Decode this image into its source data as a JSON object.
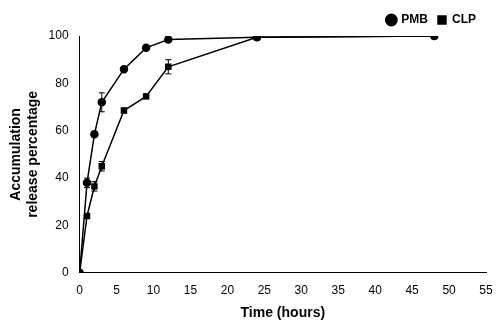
{
  "chart_data": {
    "type": "line",
    "x_label": "Time (hours)",
    "y_label": [
      "Accumulation",
      "release percentage"
    ],
    "xlim": [
      0,
      55
    ],
    "xticks": [
      0,
      5,
      10,
      15,
      20,
      25,
      30,
      35,
      40,
      45,
      50,
      55
    ],
    "ylim": [
      0,
      100
    ],
    "yticks": [
      0,
      20,
      40,
      60,
      80,
      100
    ],
    "grid": false,
    "legend": "top-right",
    "series": [
      {
        "name": "PMB",
        "color": "#000000",
        "marker": "circle",
        "line_style": "solid",
        "x": [
          0,
          1,
          2,
          3,
          6,
          9,
          12,
          24,
          48
        ],
        "values": [
          0,
          38,
          58.5,
          72,
          86,
          95,
          98.5,
          99.5,
          100
        ],
        "errors": [
          null,
          2,
          1,
          4,
          1,
          1,
          1,
          null,
          null
        ]
      },
      {
        "name": "CLP",
        "color": "#000000",
        "marker": "square",
        "line_style": "solid",
        "x": [
          0,
          1,
          2,
          3,
          6,
          9,
          12,
          24,
          48
        ],
        "values": [
          0,
          24,
          36.5,
          45,
          68.5,
          74.5,
          87,
          99.5,
          100
        ],
        "errors": [
          null,
          1,
          2,
          2,
          1,
          1,
          3,
          null,
          null
        ]
      }
    ]
  }
}
